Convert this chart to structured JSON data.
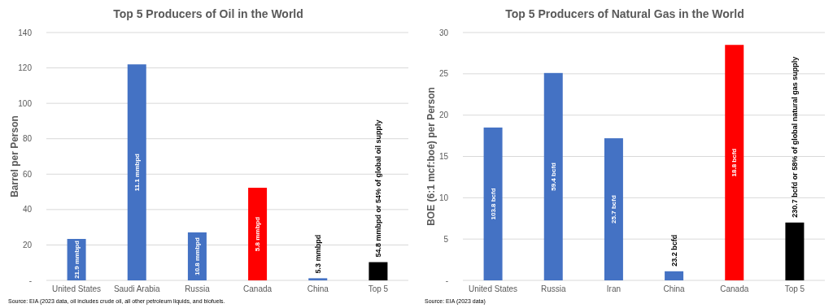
{
  "chart_data": [
    {
      "type": "bar",
      "title": "Top 5 Producers of Oil in the World",
      "ylabel": "Barrel per Person",
      "categories": [
        "United States",
        "Saudi Arabia",
        "Russia",
        "Canada",
        "China",
        "Top 5"
      ],
      "values": [
        23.4,
        122,
        27.1,
        52.3,
        1.2,
        10.3
      ],
      "colors": [
        "#4472c4",
        "#4472c4",
        "#4472c4",
        "#ff0000",
        "#4472c4",
        "#000000"
      ],
      "ylim": [
        0,
        140
      ],
      "yticks": [
        {
          "value": 0,
          "label": "-"
        },
        20,
        40,
        60,
        80,
        100,
        120,
        140
      ],
      "grid": "y",
      "annotations": [
        "21.9 mmbpd",
        "11.1 mmbpd",
        "10.8 mmbpd",
        "5.8 mmbpd",
        {
          "text": "5.3 mmbpd",
          "x": "China",
          "y": 1.2
        },
        {
          "text": "54.8 mmbpd or 54% of global oil supply",
          "x": "Top 5",
          "y": 10.3
        },
        "Source: EIA (2023 data, oil includes crude oil, all other petroleum liquids, and biofuels."
      ]
    },
    {
      "type": "bar",
      "title": "Top 5 Producers of Natural Gas in the World",
      "ylabel": "BOE (6:1 mcf:boe) per Person",
      "categories": [
        "United States",
        "Russia",
        "Iran",
        "China",
        "Canada",
        "Top 5"
      ],
      "values": [
        18.5,
        25.1,
        17.2,
        1.1,
        28.5,
        7
      ],
      "colors": [
        "#4472c4",
        "#4472c4",
        "#4472c4",
        "#4472c4",
        "#ff0000",
        "#000000"
      ],
      "ylim": [
        0,
        30
      ],
      "yticks": [
        {
          "value": 0,
          "label": "-"
        },
        5,
        10,
        15,
        20,
        25,
        30
      ],
      "grid": "y",
      "annotations": [
        "103.8 bcfd",
        "59.4 bcfd",
        "25.7 bcfd",
        {
          "text": "23.2 bcfd",
          "x": "China",
          "y": 1.1
        },
        "18.8 bcfd",
        {
          "text": "230.7 bcfd or 58% of global natural gas supply",
          "x": "Top 5",
          "y": 7
        },
        "Source: EIA (2023 data)"
      ]
    }
  ]
}
